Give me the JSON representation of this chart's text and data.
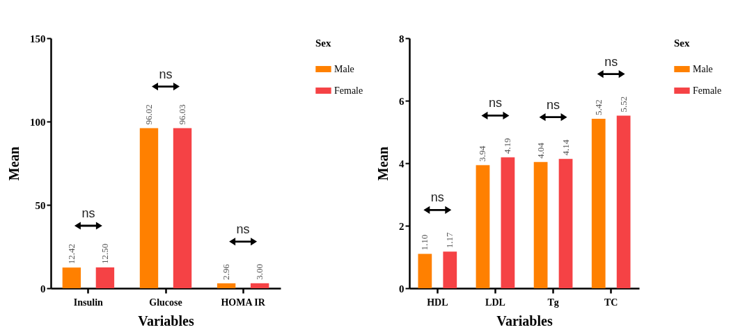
{
  "chart_data": [
    {
      "type": "bar",
      "xlabel": "Variables",
      "ylabel": "Mean",
      "legend_title": "Sex",
      "legend": "top right",
      "grid": false,
      "categories": [
        "Insulin",
        "Glucose",
        "HOMA IR"
      ],
      "series": [
        {
          "name": "Male",
          "color": "#ff8000",
          "values": [
            12.42,
            96.02,
            2.96
          ],
          "value_labels": [
            "12.42",
            "96.02",
            "2.96"
          ]
        },
        {
          "name": "Female",
          "color": "#f54245",
          "values": [
            12.5,
            96.03,
            3.0
          ],
          "value_labels": [
            "12.50",
            "96.03",
            "3.00"
          ]
        }
      ],
      "ylim": [
        0,
        150
      ],
      "yticks": [
        0,
        50,
        100,
        150
      ],
      "annotations": [
        "ns",
        "ns",
        "ns"
      ]
    },
    {
      "type": "bar",
      "xlabel": "Variables",
      "ylabel": "Mean",
      "legend_title": "Sex",
      "legend": "top right",
      "grid": false,
      "categories": [
        "HDL",
        "LDL",
        "Tg",
        "TC"
      ],
      "series": [
        {
          "name": "Male",
          "color": "#ff8000",
          "values": [
            1.1,
            3.94,
            4.04,
            5.42
          ],
          "value_labels": [
            "1.10",
            "3.94",
            "4.04",
            "5.42"
          ]
        },
        {
          "name": "Female",
          "color": "#f54245",
          "values": [
            1.17,
            4.19,
            4.14,
            5.52
          ],
          "value_labels": [
            "1.17",
            "4.19",
            "4.14",
            "5.52"
          ]
        }
      ],
      "ylim": [
        0,
        8
      ],
      "yticks": [
        0,
        2,
        4,
        6,
        8
      ],
      "annotations": [
        "ns",
        "ns",
        "ns",
        "ns"
      ]
    }
  ]
}
